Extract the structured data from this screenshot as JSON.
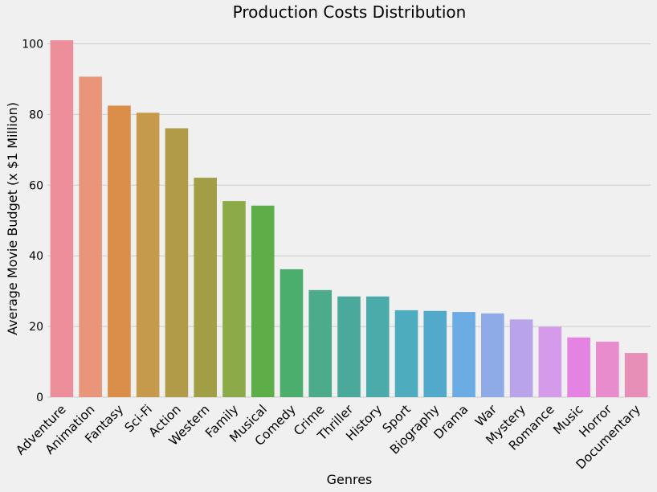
{
  "chart_data": {
    "type": "bar",
    "title": "Production Costs Distribution",
    "xlabel": "Genres",
    "ylabel": "Average Movie Budget (x $1 Million)",
    "ylim": [
      0,
      104
    ],
    "yticks": [
      0,
      20,
      40,
      60,
      80,
      100
    ],
    "grid": "horizontal",
    "categories": [
      "Adventure",
      "Animation",
      "Fantasy",
      "Sci-Fi",
      "Action",
      "Western",
      "Family",
      "Musical",
      "Comedy",
      "Crime",
      "Thriller",
      "History",
      "Sport",
      "Biography",
      "Drama",
      "War",
      "Mystery",
      "Romance",
      "Music",
      "Horror",
      "Documentary"
    ],
    "values": [
      101,
      90.7,
      82.5,
      80.5,
      76.1,
      62.1,
      55.5,
      54.2,
      36.2,
      30.3,
      28.5,
      28.5,
      24.6,
      24.4,
      24.1,
      23.7,
      22.0,
      19.9,
      16.9,
      15.7,
      12.5
    ],
    "colors": [
      "#ec8f9a",
      "#e9957a",
      "#db8e4a",
      "#c69a4c",
      "#b19a48",
      "#a19e46",
      "#8daa48",
      "#5dae49",
      "#4bae6d",
      "#4bab8a",
      "#4aa99a",
      "#4aabaa",
      "#4dadbe",
      "#53a9c9",
      "#6bace4",
      "#8eabe8",
      "#b9a4ea",
      "#d59aea",
      "#e483e1",
      "#e98ccd",
      "#e88fb8"
    ]
  }
}
